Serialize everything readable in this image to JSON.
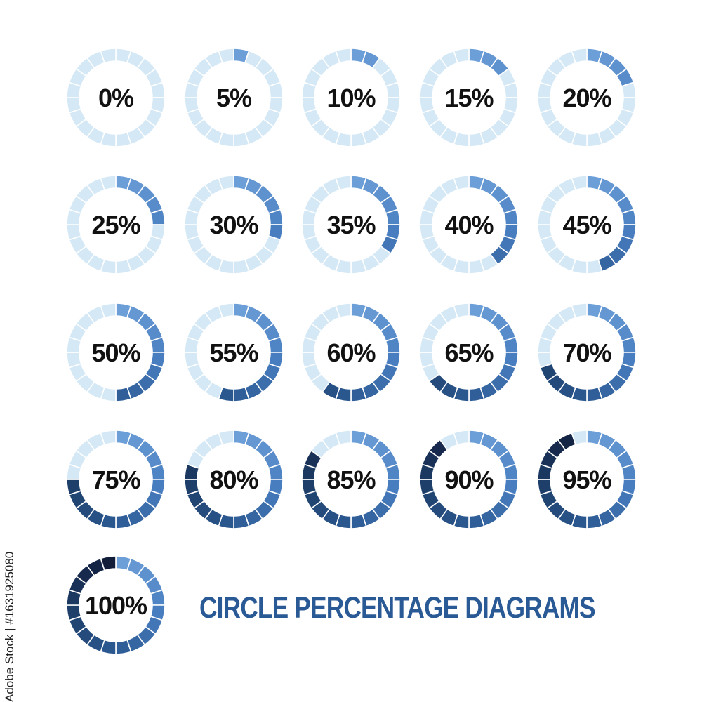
{
  "headline": "CIRCLE PERCENTAGE DIAGRAMS",
  "stock_id": "Adobe Stock | #1631925080",
  "colors": {
    "track": "#d4e8f6",
    "segment_gap": "#ffffff",
    "fill_gradient": [
      "#6c9fd8",
      "#4a80c2",
      "#2c5a93",
      "#1d3d68",
      "#121d3a"
    ],
    "label": "#111111",
    "headline": "#2a5a95"
  },
  "segments_per_ring": 20,
  "chart_data": {
    "type": "pie",
    "values": [
      0,
      5,
      10,
      15,
      20,
      25,
      30,
      35,
      40,
      45,
      50,
      55,
      60,
      65,
      70,
      75,
      80,
      85,
      90,
      95,
      100
    ],
    "labels": [
      "0%",
      "5%",
      "10%",
      "15%",
      "20%",
      "25%",
      "30%",
      "35%",
      "40%",
      "45%",
      "50%",
      "55%",
      "60%",
      "65%",
      "70%",
      "75%",
      "80%",
      "85%",
      "90%",
      "95%",
      "100%"
    ]
  }
}
